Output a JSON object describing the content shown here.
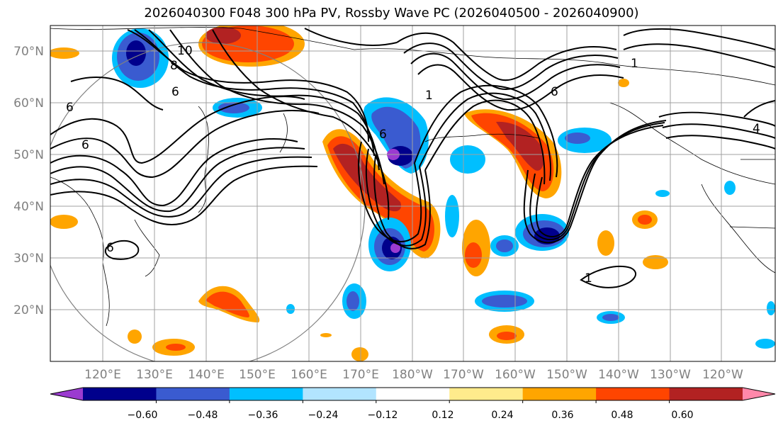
{
  "title": "2026040300 F048 300 hPa PV, Rossby Wave PC (2026040500 - 2026040900)",
  "map": {
    "lat_labels": [
      "70°N",
      "60°N",
      "50°N",
      "40°N",
      "30°N",
      "20°N"
    ],
    "lon_labels": [
      "120°E",
      "130°E",
      "140°E",
      "150°E",
      "160°E",
      "170°E",
      "180°W",
      "170°W",
      "160°W",
      "150°W",
      "140°W",
      "130°W",
      "120°W"
    ],
    "contour_labels": [
      "6",
      "6",
      "10",
      "8",
      "6",
      "6",
      "6",
      "1",
      "6",
      "1",
      "4",
      "1"
    ],
    "grid_color": "#a0a0a0",
    "land_outline_color": "#000000"
  },
  "colorbar": {
    "colors": [
      "#9b3bd0",
      "#00008c",
      "#3a5bd0",
      "#00bfff",
      "#b2e4ff",
      "#ffffff",
      "#ffeb8c",
      "#ffa500",
      "#ff4500",
      "#b22222",
      "#ff88aa"
    ],
    "tick_labels": [
      "−0.60",
      "−0.48",
      "−0.36",
      "−0.24",
      "−0.12",
      "0.12",
      "0.24",
      "0.36",
      "0.48",
      "0.60"
    ]
  }
}
